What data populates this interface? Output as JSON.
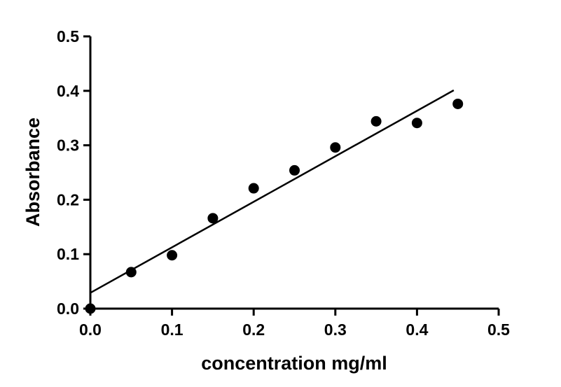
{
  "chart_data": {
    "type": "scatter",
    "title": "",
    "xlabel": "concentration mg/ml",
    "ylabel": "Absorbance",
    "xlim": [
      0.0,
      0.5
    ],
    "ylim": [
      0.0,
      0.5
    ],
    "x_ticks": [
      "0.0",
      "0.1",
      "0.2",
      "0.3",
      "0.4",
      "0.5"
    ],
    "y_ticks": [
      "0.0",
      "0.1",
      "0.2",
      "0.3",
      "0.4",
      "0.5"
    ],
    "grid": false,
    "legend": "none",
    "colors": {
      "points": "#000000",
      "fit_line": "#000000",
      "axes": "#000000"
    },
    "series": [
      {
        "points": [
          {
            "x": 0.0,
            "y": 0.0
          },
          {
            "x": 0.05,
            "y": 0.067
          },
          {
            "x": 0.1,
            "y": 0.098
          },
          {
            "x": 0.15,
            "y": 0.166
          },
          {
            "x": 0.2,
            "y": 0.221
          },
          {
            "x": 0.25,
            "y": 0.254
          },
          {
            "x": 0.3,
            "y": 0.296
          },
          {
            "x": 0.35,
            "y": 0.344
          },
          {
            "x": 0.4,
            "y": 0.341
          },
          {
            "x": 0.45,
            "y": 0.376
          }
        ]
      }
    ],
    "fit_line": {
      "type": "linear",
      "x": [
        0.0,
        0.445
      ],
      "y": [
        0.029,
        0.401
      ]
    }
  }
}
